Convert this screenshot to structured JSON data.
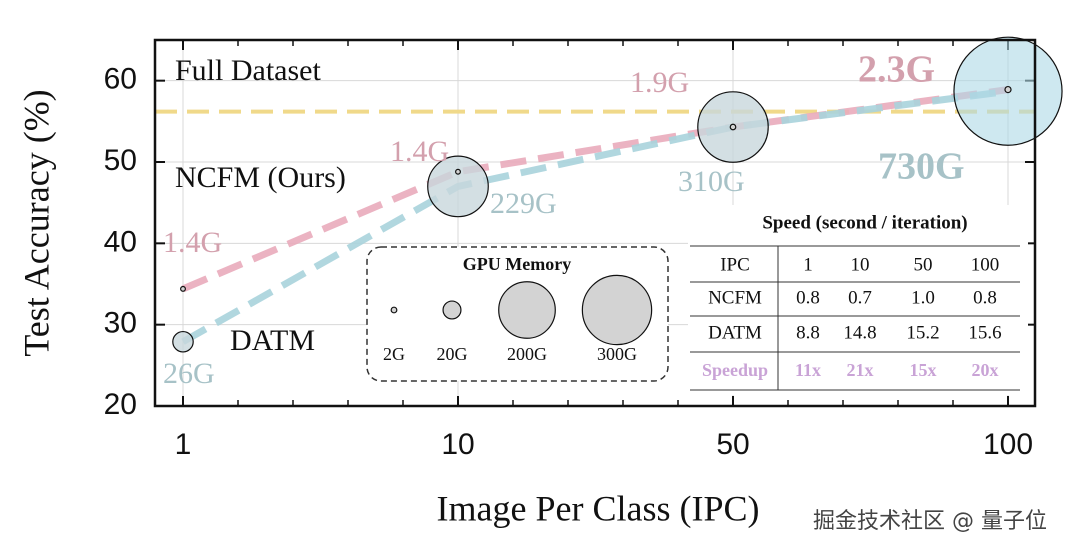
{
  "chart_data": {
    "type": "line",
    "x_label": "Image Per Class (IPC)",
    "y_label": "Test Accuracy (%)",
    "categories": [
      "1",
      "10",
      "50",
      "100"
    ],
    "ylim": [
      20,
      65
    ],
    "yticks": [
      20,
      30,
      40,
      50,
      60
    ],
    "series": [
      {
        "name": "NCFM (Ours)",
        "color": "#e9abbb",
        "label_color": "#d3a0ad",
        "values": [
          34.4,
          48.8,
          54.3,
          58.9
        ],
        "sizes": [
          1.4,
          1.4,
          1.9,
          2.3
        ],
        "size_labels": [
          "1.4G",
          "1.4G",
          "1.9G",
          "2.3G"
        ]
      },
      {
        "name": "DATM",
        "color": "#a9d3dc",
        "label_color": "#a7c2c7",
        "values": [
          27.9,
          47.0,
          54.3,
          58.7
        ],
        "sizes": [
          26,
          229,
          310,
          730
        ],
        "size_labels": [
          "26G",
          "229G",
          "310G",
          "730G"
        ]
      }
    ],
    "reference": {
      "name": "Full Dataset",
      "value": 56.2,
      "color": "#f0d98a"
    },
    "size_legend": {
      "title": "GPU Memory",
      "sizes": [
        2,
        20,
        200,
        300
      ],
      "labels": [
        "2G",
        "20G",
        "200G",
        "300G"
      ]
    },
    "table": {
      "title": "Speed (second / iteration)",
      "header": [
        "IPC",
        "1",
        "10",
        "50",
        "100"
      ],
      "rows": [
        [
          "NCFM",
          "0.8",
          "0.7",
          "1.0",
          "0.8"
        ],
        [
          "DATM",
          "8.8",
          "14.8",
          "15.2",
          "15.6"
        ],
        [
          "Speedup",
          "11x",
          "21x",
          "15x",
          "20x"
        ]
      ]
    },
    "watermark": "掘金技术社区 @ 量子位"
  }
}
